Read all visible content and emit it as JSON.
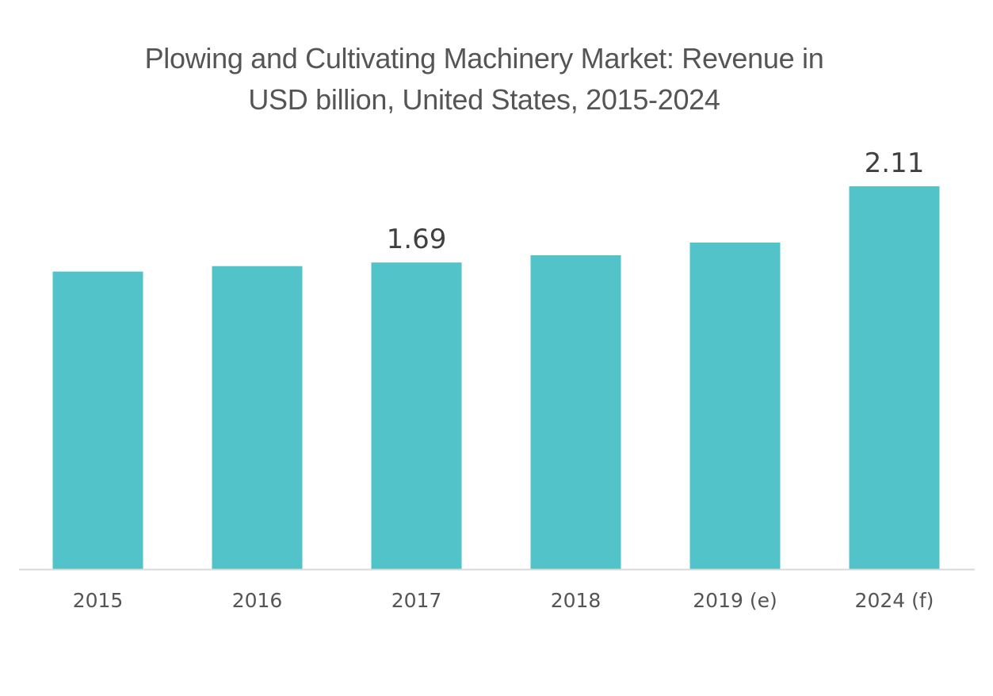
{
  "chart_data": {
    "type": "bar",
    "title_lines": [
      "Plowing and Cultivating Machinery Market: Revenue in",
      "USD billion, United States, 2015-2024"
    ],
    "categories": [
      "2015",
      "2016",
      "2017",
      "2018",
      "2019 (e)",
      "2024 (f)"
    ],
    "values": [
      1.64,
      1.67,
      1.69,
      1.73,
      1.8,
      2.11
    ],
    "data_labels": [
      "",
      "",
      "1.69",
      "",
      "",
      "2.11"
    ],
    "xlabel": "",
    "ylabel": "",
    "ylim": [
      0,
      2.11
    ],
    "grid": false,
    "legend": "none",
    "colors": {
      "bar": "#52C3C9",
      "axis": "#D9D9D9",
      "title": "#555555"
    }
  }
}
